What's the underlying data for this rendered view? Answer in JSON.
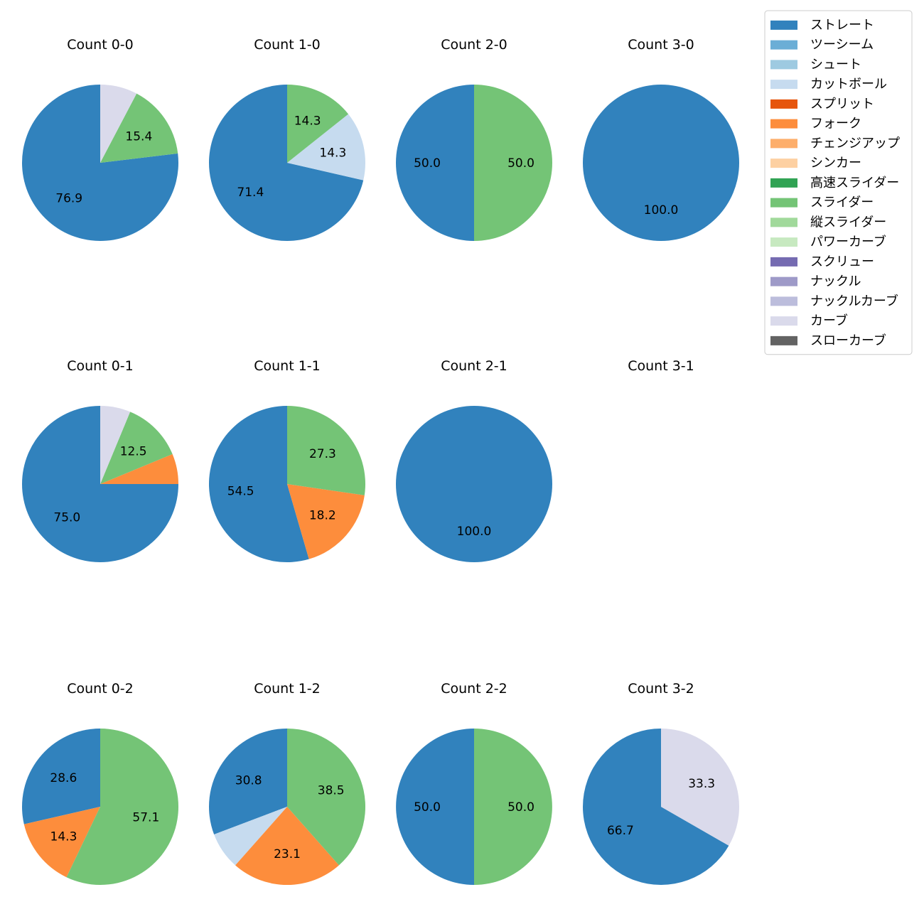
{
  "chart_data": {
    "type": "pie",
    "layout": "grid of pie charts by pitch count (balls-strikes)",
    "value_format": "percentage, 1 decimal; labels shown only for slices >= 10%",
    "legend": {
      "position": "top-right",
      "entries": [
        {
          "name": "ストレート",
          "color": "#3182bd"
        },
        {
          "name": "ツーシーム",
          "color": "#6baed6"
        },
        {
          "name": "シュート",
          "color": "#9ecae1"
        },
        {
          "name": "カットボール",
          "color": "#c6dbef"
        },
        {
          "name": "スプリット",
          "color": "#e6550d"
        },
        {
          "name": "フォーク",
          "color": "#fd8d3c"
        },
        {
          "name": "チェンジアップ",
          "color": "#fdae6b"
        },
        {
          "name": "シンカー",
          "color": "#fdd0a2"
        },
        {
          "name": "高速スライダー",
          "color": "#31a354"
        },
        {
          "name": "スライダー",
          "color": "#74c476"
        },
        {
          "name": "縦スライダー",
          "color": "#a1d99b"
        },
        {
          "name": "パワーカーブ",
          "color": "#c7e9c0"
        },
        {
          "name": "スクリュー",
          "color": "#756bb1"
        },
        {
          "name": "ナックル",
          "color": "#9e9ac8"
        },
        {
          "name": "ナックルカーブ",
          "color": "#bcbddc"
        },
        {
          "name": "カーブ",
          "color": "#dadaeb"
        },
        {
          "name": "スローカーブ",
          "color": "#636363"
        }
      ]
    },
    "charts": [
      {
        "title": "Count 0-0",
        "slices": [
          {
            "name": "ストレート",
            "value": 76.9
          },
          {
            "name": "スライダー",
            "value": 15.4
          },
          {
            "name": "カーブ",
            "value": 7.7
          }
        ]
      },
      {
        "title": "Count 1-0",
        "slices": [
          {
            "name": "ストレート",
            "value": 71.4
          },
          {
            "name": "カットボール",
            "value": 14.3
          },
          {
            "name": "スライダー",
            "value": 14.3
          }
        ]
      },
      {
        "title": "Count 2-0",
        "slices": [
          {
            "name": "ストレート",
            "value": 50.0
          },
          {
            "name": "スライダー",
            "value": 50.0
          }
        ]
      },
      {
        "title": "Count 3-0",
        "slices": [
          {
            "name": "ストレート",
            "value": 100.0
          }
        ]
      },
      {
        "title": "Count 0-1",
        "slices": [
          {
            "name": "ストレート",
            "value": 75.0
          },
          {
            "name": "フォーク",
            "value": 6.25
          },
          {
            "name": "スライダー",
            "value": 12.5
          },
          {
            "name": "カーブ",
            "value": 6.25
          }
        ]
      },
      {
        "title": "Count 1-1",
        "slices": [
          {
            "name": "ストレート",
            "value": 54.5
          },
          {
            "name": "フォーク",
            "value": 18.2
          },
          {
            "name": "スライダー",
            "value": 27.3
          }
        ]
      },
      {
        "title": "Count 2-1",
        "slices": [
          {
            "name": "ストレート",
            "value": 100.0
          }
        ]
      },
      {
        "title": "Count 3-1",
        "slices": []
      },
      {
        "title": "Count 0-2",
        "slices": [
          {
            "name": "ストレート",
            "value": 28.6
          },
          {
            "name": "フォーク",
            "value": 14.3
          },
          {
            "name": "スライダー",
            "value": 57.1
          }
        ]
      },
      {
        "title": "Count 1-2",
        "slices": [
          {
            "name": "ストレート",
            "value": 30.8
          },
          {
            "name": "カットボール",
            "value": 7.7
          },
          {
            "name": "フォーク",
            "value": 23.1
          },
          {
            "name": "スライダー",
            "value": 38.5
          }
        ]
      },
      {
        "title": "Count 2-2",
        "slices": [
          {
            "name": "ストレート",
            "value": 50.0
          },
          {
            "name": "スライダー",
            "value": 50.0
          }
        ]
      },
      {
        "title": "Count 3-2",
        "slices": [
          {
            "name": "ストレート",
            "value": 66.7
          },
          {
            "name": "カーブ",
            "value": 33.3
          }
        ]
      }
    ]
  }
}
